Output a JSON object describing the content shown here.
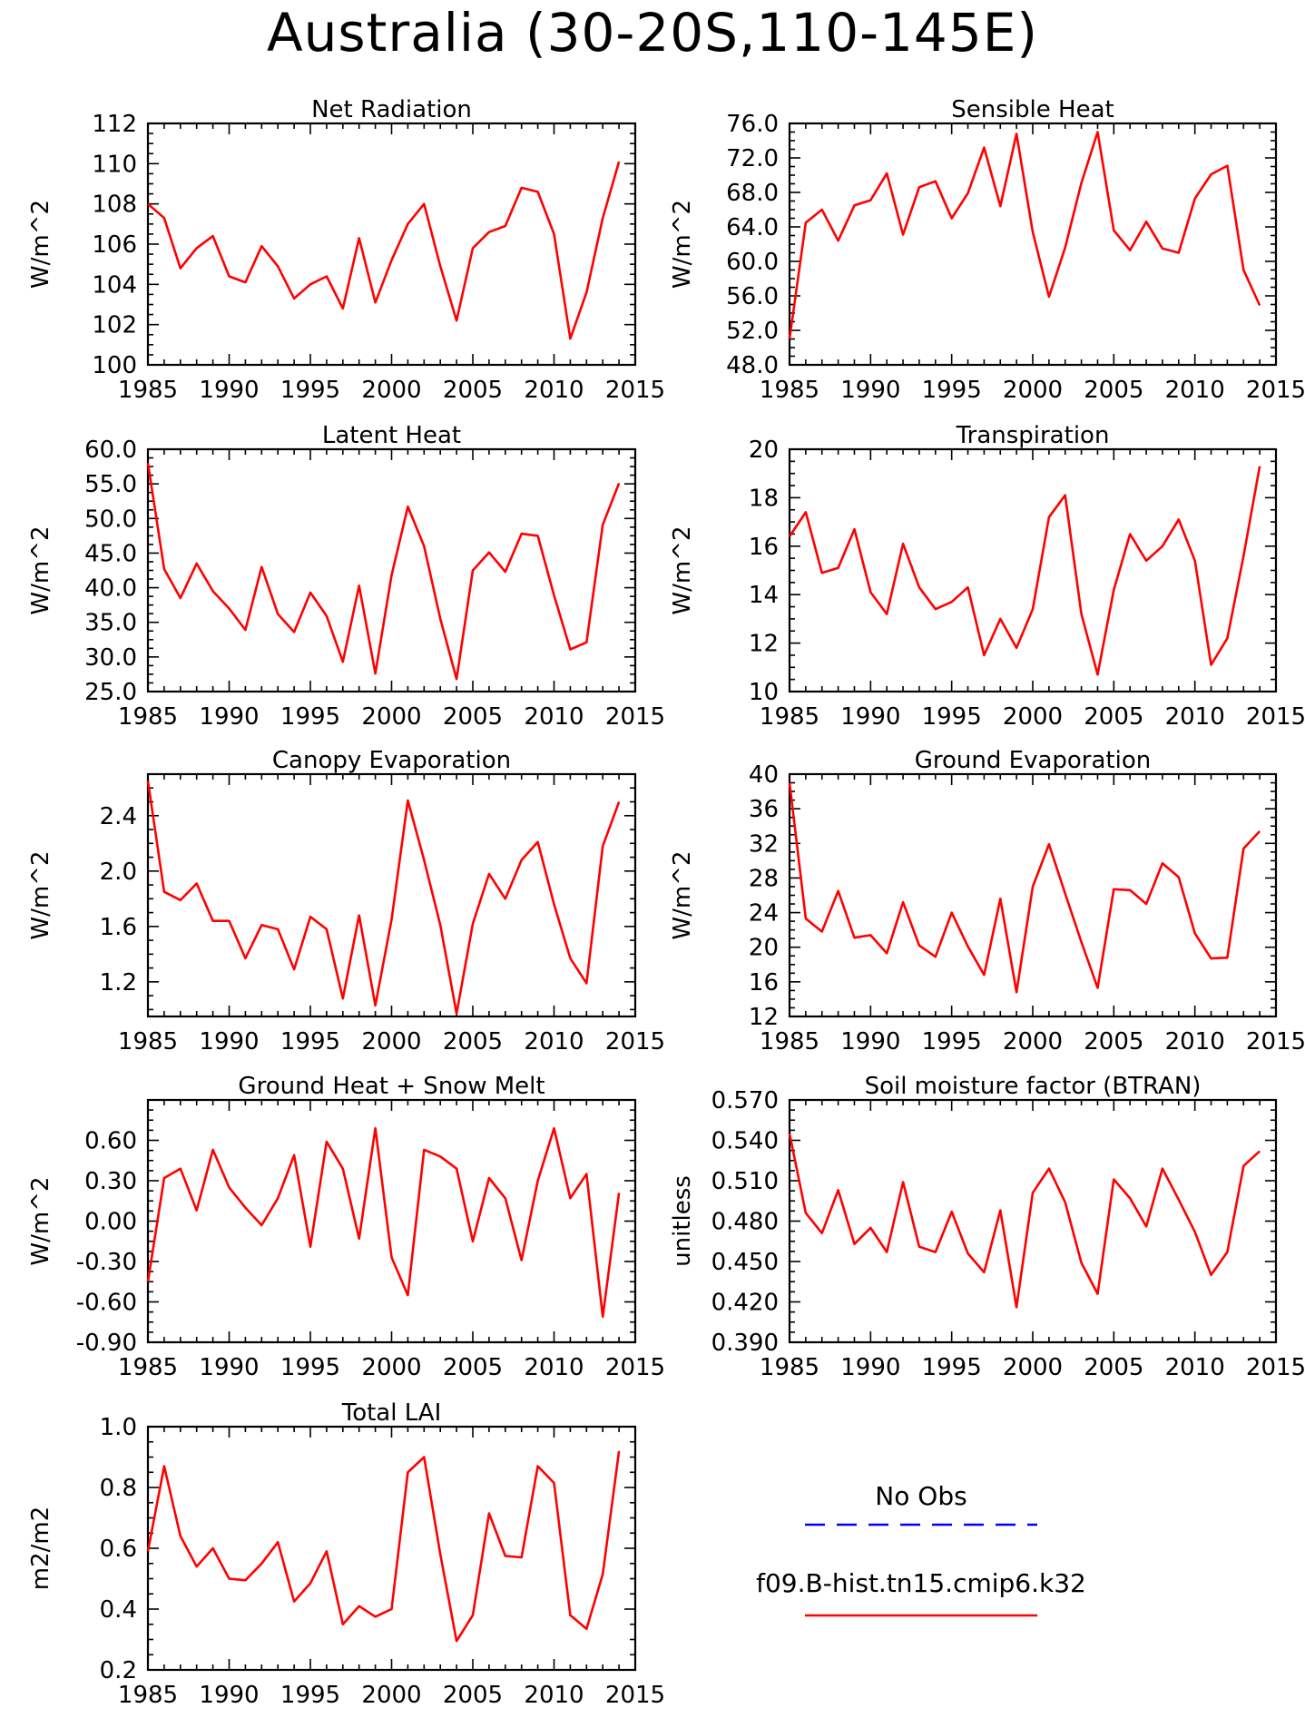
{
  "figure": {
    "title": "Australia (30-20S,110-145E)",
    "line_color": "#ff0000",
    "obs_color": "#0000ff"
  },
  "legend": {
    "obs_label": "No Obs",
    "model_label": "f09.B-hist.tn15.cmip6.k32"
  },
  "chart_data": [
    {
      "type": "line",
      "title": "Net Radiation",
      "ylabel": "W/m^2",
      "xlabel": "",
      "ylim": [
        100,
        112
      ],
      "xlim": [
        1985,
        2015
      ],
      "xticks": [
        1985,
        1990,
        1995,
        2000,
        2005,
        2010,
        2015
      ],
      "yticks": [
        "100",
        "102",
        "104",
        "106",
        "108",
        "110",
        "112"
      ],
      "x": [
        1985,
        1986,
        1987,
        1988,
        1989,
        1990,
        1991,
        1992,
        1993,
        1994,
        1995,
        1996,
        1997,
        1998,
        1999,
        2000,
        2001,
        2002,
        2003,
        2004,
        2005,
        2006,
        2007,
        2008,
        2009,
        2010,
        2011,
        2012,
        2013,
        2014
      ],
      "series": [
        {
          "name": "f09.B-hist.tn15.cmip6.k32",
          "values": [
            108.0,
            107.3,
            104.8,
            105.8,
            106.4,
            104.4,
            104.1,
            105.9,
            104.9,
            103.3,
            104.0,
            104.4,
            102.8,
            106.3,
            103.1,
            105.2,
            107.0,
            108.0,
            104.9,
            102.2,
            105.8,
            106.6,
            106.9,
            108.8,
            108.6,
            106.5,
            101.3,
            103.6,
            107.3,
            110.1
          ]
        }
      ]
    },
    {
      "type": "line",
      "title": "Sensible Heat",
      "ylabel": "W/m^2",
      "xlabel": "",
      "ylim": [
        48,
        76
      ],
      "xlim": [
        1985,
        2015
      ],
      "xticks": [
        1985,
        1990,
        1995,
        2000,
        2005,
        2010,
        2015
      ],
      "yticks": [
        "48.0",
        "52.0",
        "56.0",
        "60.0",
        "64.0",
        "68.0",
        "72.0",
        "76.0"
      ],
      "x": [
        1985,
        1986,
        1987,
        1988,
        1989,
        1990,
        1991,
        1992,
        1993,
        1994,
        1995,
        1996,
        1997,
        1998,
        1999,
        2000,
        2001,
        2002,
        2003,
        2004,
        2005,
        2006,
        2007,
        2008,
        2009,
        2010,
        2011,
        2012,
        2013,
        2014
      ],
      "series": [
        {
          "name": "f09.B-hist.tn15.cmip6.k32",
          "values": [
            51.0,
            64.5,
            66.0,
            62.4,
            66.5,
            67.1,
            70.2,
            63.1,
            68.6,
            69.3,
            65.0,
            67.9,
            73.2,
            66.4,
            74.8,
            63.4,
            55.9,
            61.6,
            69.1,
            75.0,
            63.6,
            61.3,
            64.6,
            61.5,
            61.0,
            67.3,
            70.1,
            71.1,
            59.0,
            54.9
          ]
        }
      ]
    },
    {
      "type": "line",
      "title": "Latent Heat",
      "ylabel": "W/m^2",
      "xlabel": "",
      "ylim": [
        25,
        60
      ],
      "xlim": [
        1985,
        2015
      ],
      "xticks": [
        1985,
        1990,
        1995,
        2000,
        2005,
        2010,
        2015
      ],
      "yticks": [
        "25.0",
        "30.0",
        "35.0",
        "40.0",
        "45.0",
        "50.0",
        "55.0",
        "60.0"
      ],
      "x": [
        1985,
        1986,
        1987,
        1988,
        1989,
        1990,
        1991,
        1992,
        1993,
        1994,
        1995,
        1996,
        1997,
        1998,
        1999,
        2000,
        2001,
        2002,
        2003,
        2004,
        2005,
        2006,
        2007,
        2008,
        2009,
        2010,
        2011,
        2012,
        2013,
        2014
      ],
      "series": [
        {
          "name": "f09.B-hist.tn15.cmip6.k32",
          "values": [
            58.0,
            42.7,
            38.5,
            43.5,
            39.5,
            37.0,
            33.9,
            43.0,
            36.2,
            33.6,
            39.3,
            35.9,
            29.3,
            40.3,
            27.6,
            41.8,
            51.7,
            46.0,
            35.5,
            26.8,
            42.5,
            45.1,
            42.3,
            47.8,
            47.5,
            38.9,
            31.1,
            32.1,
            49.1,
            55.1
          ]
        }
      ]
    },
    {
      "type": "line",
      "title": "Transpiration",
      "ylabel": "W/m^2",
      "xlabel": "",
      "ylim": [
        10,
        20
      ],
      "xlim": [
        1985,
        2015
      ],
      "xticks": [
        1985,
        1990,
        1995,
        2000,
        2005,
        2010,
        2015
      ],
      "yticks": [
        "10",
        "12",
        "14",
        "16",
        "18",
        "20"
      ],
      "x": [
        1985,
        1986,
        1987,
        1988,
        1989,
        1990,
        1991,
        1992,
        1993,
        1994,
        1995,
        1996,
        1997,
        1998,
        1999,
        2000,
        2001,
        2002,
        2003,
        2004,
        2005,
        2006,
        2007,
        2008,
        2009,
        2010,
        2011,
        2012,
        2013,
        2014
      ],
      "series": [
        {
          "name": "f09.B-hist.tn15.cmip6.k32",
          "values": [
            16.4,
            17.4,
            14.9,
            15.1,
            16.7,
            14.1,
            13.2,
            16.1,
            14.3,
            13.4,
            13.7,
            14.3,
            11.5,
            13.0,
            11.8,
            13.4,
            17.2,
            18.1,
            13.2,
            10.7,
            14.2,
            16.5,
            15.4,
            16.0,
            17.1,
            15.4,
            11.1,
            12.2,
            15.6,
            19.3
          ]
        }
      ]
    },
    {
      "type": "line",
      "title": "Canopy Evaporation",
      "ylabel": "W/m^2",
      "xlabel": "",
      "ylim": [
        0.95,
        2.7
      ],
      "xlim": [
        1985,
        2015
      ],
      "xticks": [
        1985,
        1990,
        1995,
        2000,
        2005,
        2010,
        2015
      ],
      "yticks": [
        "1.2",
        "1.6",
        "2.0",
        "2.4"
      ],
      "ytick_values": [
        1.2,
        1.6,
        2.0,
        2.4
      ],
      "x": [
        1985,
        1986,
        1987,
        1988,
        1989,
        1990,
        1991,
        1992,
        1993,
        1994,
        1995,
        1996,
        1997,
        1998,
        1999,
        2000,
        2001,
        2002,
        2003,
        2004,
        2005,
        2006,
        2007,
        2008,
        2009,
        2010,
        2011,
        2012,
        2013,
        2014
      ],
      "series": [
        {
          "name": "f09.B-hist.tn15.cmip6.k32",
          "values": [
            2.65,
            1.85,
            1.79,
            1.91,
            1.64,
            1.64,
            1.37,
            1.61,
            1.58,
            1.29,
            1.67,
            1.58,
            1.08,
            1.68,
            1.03,
            1.65,
            2.51,
            2.08,
            1.61,
            0.97,
            1.62,
            1.98,
            1.8,
            2.08,
            2.21,
            1.76,
            1.37,
            1.19,
            2.18,
            2.5
          ]
        }
      ]
    },
    {
      "type": "line",
      "title": "Ground Evaporation",
      "ylabel": "W/m^2",
      "xlabel": "",
      "ylim": [
        12,
        40
      ],
      "xlim": [
        1985,
        2015
      ],
      "xticks": [
        1985,
        1990,
        1995,
        2000,
        2005,
        2010,
        2015
      ],
      "yticks": [
        "12",
        "16",
        "20",
        "24",
        "28",
        "32",
        "36",
        "40"
      ],
      "x": [
        1985,
        1986,
        1987,
        1988,
        1989,
        1990,
        1991,
        1992,
        1993,
        1994,
        1995,
        1996,
        1997,
        1998,
        1999,
        2000,
        2001,
        2002,
        2003,
        2004,
        2005,
        2006,
        2007,
        2008,
        2009,
        2010,
        2011,
        2012,
        2013,
        2014
      ],
      "series": [
        {
          "name": "f09.B-hist.tn15.cmip6.k32",
          "values": [
            39.0,
            23.3,
            21.8,
            26.5,
            21.1,
            21.4,
            19.3,
            25.2,
            20.2,
            18.9,
            24.0,
            20.1,
            16.8,
            25.6,
            14.8,
            27.0,
            31.9,
            26.2,
            20.6,
            15.3,
            26.7,
            26.6,
            25.0,
            29.7,
            28.1,
            21.6,
            18.7,
            18.8,
            31.4,
            33.4
          ]
        }
      ]
    },
    {
      "type": "line",
      "title": "Ground Heat + Snow Melt",
      "ylabel": "W/m^2",
      "xlabel": "",
      "ylim": [
        -0.9,
        0.9
      ],
      "xlim": [
        1985,
        2015
      ],
      "xticks": [
        1985,
        1990,
        1995,
        2000,
        2005,
        2010,
        2015
      ],
      "yticks": [
        "-0.90",
        "-0.60",
        "-0.30",
        "0.00",
        "0.30",
        "0.60"
      ],
      "x": [
        1985,
        1986,
        1987,
        1988,
        1989,
        1990,
        1991,
        1992,
        1993,
        1994,
        1995,
        1996,
        1997,
        1998,
        1999,
        2000,
        2001,
        2002,
        2003,
        2004,
        2005,
        2006,
        2007,
        2008,
        2009,
        2010,
        2011,
        2012,
        2013,
        2014
      ],
      "series": [
        {
          "name": "f09.B-hist.tn15.cmip6.k32",
          "values": [
            -0.45,
            0.32,
            0.39,
            0.08,
            0.53,
            0.25,
            0.1,
            -0.03,
            0.17,
            0.49,
            -0.19,
            0.59,
            0.39,
            -0.13,
            0.69,
            -0.27,
            -0.55,
            0.53,
            0.48,
            0.39,
            -0.15,
            0.32,
            0.17,
            -0.29,
            0.3,
            0.69,
            0.17,
            0.35,
            -0.71,
            0.21
          ]
        }
      ]
    },
    {
      "type": "line",
      "title": "Soil moisture factor (BTRAN)",
      "ylabel": "unitless",
      "xlabel": "",
      "ylim": [
        0.39,
        0.57
      ],
      "xlim": [
        1985,
        2015
      ],
      "xticks": [
        1985,
        1990,
        1995,
        2000,
        2005,
        2010,
        2015
      ],
      "yticks": [
        "0.390",
        "0.420",
        "0.450",
        "0.480",
        "0.510",
        "0.540",
        "0.570"
      ],
      "x": [
        1985,
        1986,
        1987,
        1988,
        1989,
        1990,
        1991,
        1992,
        1993,
        1994,
        1995,
        1996,
        1997,
        1998,
        1999,
        2000,
        2001,
        2002,
        2003,
        2004,
        2005,
        2006,
        2007,
        2008,
        2009,
        2010,
        2011,
        2012,
        2013,
        2014
      ],
      "series": [
        {
          "name": "f09.B-hist.tn15.cmip6.k32",
          "values": [
            0.545,
            0.486,
            0.471,
            0.503,
            0.463,
            0.475,
            0.457,
            0.509,
            0.461,
            0.457,
            0.487,
            0.456,
            0.442,
            0.488,
            0.416,
            0.501,
            0.519,
            0.494,
            0.449,
            0.426,
            0.511,
            0.497,
            0.476,
            0.519,
            0.496,
            0.472,
            0.44,
            0.457,
            0.521,
            0.532
          ]
        }
      ]
    },
    {
      "type": "line",
      "title": "Total LAI",
      "ylabel": "m2/m2",
      "xlabel": "",
      "ylim": [
        0.2,
        1.0
      ],
      "xlim": [
        1985,
        2015
      ],
      "xticks": [
        1985,
        1990,
        1995,
        2000,
        2005,
        2010,
        2015
      ],
      "yticks": [
        "0.2",
        "0.4",
        "0.6",
        "0.8",
        "1.0"
      ],
      "x": [
        1985,
        1986,
        1987,
        1988,
        1989,
        1990,
        1991,
        1992,
        1993,
        1994,
        1995,
        1996,
        1997,
        1998,
        1999,
        2000,
        2001,
        2002,
        2003,
        2004,
        2005,
        2006,
        2007,
        2008,
        2009,
        2010,
        2011,
        2012,
        2013,
        2014
      ],
      "series": [
        {
          "name": "f09.B-hist.tn15.cmip6.k32",
          "values": [
            0.59,
            0.87,
            0.64,
            0.54,
            0.6,
            0.5,
            0.495,
            0.55,
            0.62,
            0.425,
            0.485,
            0.59,
            0.35,
            0.41,
            0.375,
            0.4,
            0.85,
            0.9,
            0.58,
            0.295,
            0.38,
            0.715,
            0.575,
            0.57,
            0.87,
            0.815,
            0.38,
            0.335,
            0.515,
            0.92
          ]
        }
      ]
    }
  ]
}
